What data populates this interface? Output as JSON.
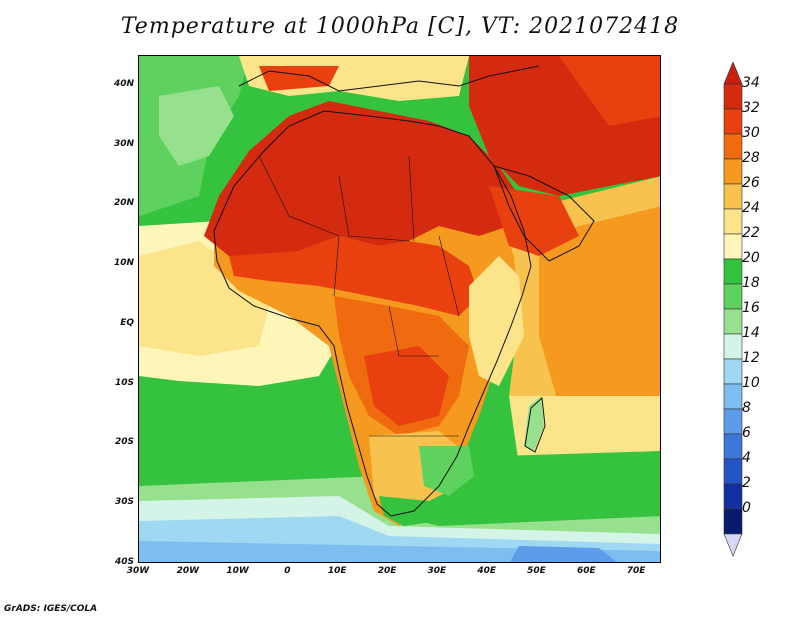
{
  "title": "Temperature at 1000hPa [C], VT: 2021072418",
  "credit": "GrADS: IGES/COLA",
  "lat_labels": [
    "40N",
    "30N",
    "20N",
    "10N",
    "EQ",
    "10S",
    "20S",
    "30S",
    "40S"
  ],
  "lon_labels": [
    "30W",
    "20W",
    "10W",
    "0",
    "10E",
    "20E",
    "30E",
    "40E",
    "50E",
    "60E",
    "70E"
  ],
  "colorbar": {
    "levels": [
      "34",
      "32",
      "30",
      "28",
      "26",
      "24",
      "22",
      "20",
      "18",
      "16",
      "14",
      "12",
      "10",
      "8",
      "6",
      "4",
      "2",
      "0"
    ],
    "colors": [
      "#d42a0f",
      "#e8400f",
      "#f06a10",
      "#f59a1e",
      "#f8c24e",
      "#fbe48a",
      "#fef6b8",
      "#35c23f",
      "#5fd15f",
      "#96e08e",
      "#d4f4e8",
      "#9fd8f2",
      "#7dbdf0",
      "#5c9ce8",
      "#3c78d8",
      "#2455c4",
      "#1430a0",
      "#0a1a6e"
    ],
    "arrow_top_color": "#c8200c",
    "arrow_bottom_color": "#d8d8f4"
  },
  "map_extent": {
    "lon_min": -30,
    "lon_max": 75,
    "lat_min": -40,
    "lat_max": 45
  }
}
